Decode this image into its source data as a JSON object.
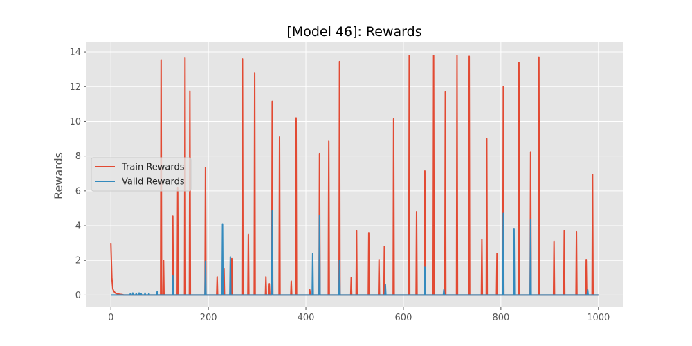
{
  "chart_data": {
    "type": "line",
    "title": "[Model 46]: Rewards",
    "xlabel": "",
    "ylabel": "Rewards",
    "xlim": [
      -50,
      1050
    ],
    "ylim": [
      -0.7,
      14.6
    ],
    "xticks": [
      0,
      200,
      400,
      600,
      800,
      1000
    ],
    "xtick_labels": [
      "0",
      "200",
      "400",
      "600",
      "800",
      "1000"
    ],
    "yticks": [
      0,
      2,
      4,
      6,
      8,
      10,
      12,
      14
    ],
    "ytick_labels": [
      "0",
      "2",
      "4",
      "6",
      "8",
      "10",
      "12",
      "14"
    ],
    "grid": true,
    "legend_position": "center-left",
    "x_range": [
      0,
      1000
    ],
    "series": [
      {
        "name": "Train Rewards",
        "color": "#E24A33",
        "baseline": 0.0,
        "start_values": [
          [
            0,
            3.0
          ],
          [
            2,
            1.0
          ],
          [
            4,
            0.35
          ],
          [
            6,
            0.22
          ],
          [
            8,
            0.15
          ],
          [
            10,
            0.1
          ],
          [
            15,
            0.06
          ],
          [
            25,
            0.02
          ]
        ],
        "spikes": [
          [
            103,
            13.55
          ],
          [
            108,
            2.0
          ],
          [
            127,
            4.55
          ],
          [
            137,
            6.2
          ],
          [
            152,
            13.65
          ],
          [
            162,
            11.75
          ],
          [
            194,
            7.35
          ],
          [
            218,
            1.05
          ],
          [
            232,
            1.5
          ],
          [
            248,
            2.1
          ],
          [
            270,
            13.6
          ],
          [
            282,
            3.5
          ],
          [
            295,
            12.8
          ],
          [
            318,
            1.05
          ],
          [
            325,
            0.65
          ],
          [
            331,
            11.15
          ],
          [
            346,
            9.1
          ],
          [
            370,
            0.8
          ],
          [
            380,
            10.2
          ],
          [
            408,
            0.3
          ],
          [
            428,
            8.15
          ],
          [
            447,
            8.85
          ],
          [
            469,
            13.45
          ],
          [
            493,
            1.0
          ],
          [
            504,
            3.7
          ],
          [
            529,
            3.6
          ],
          [
            550,
            2.05
          ],
          [
            561,
            2.8
          ],
          [
            580,
            10.15
          ],
          [
            612,
            13.8
          ],
          [
            627,
            4.8
          ],
          [
            644,
            7.15
          ],
          [
            662,
            13.8
          ],
          [
            686,
            11.7
          ],
          [
            710,
            13.8
          ],
          [
            735,
            13.75
          ],
          [
            761,
            3.2
          ],
          [
            771,
            9.0
          ],
          [
            792,
            2.4
          ],
          [
            805,
            12.0
          ],
          [
            837,
            13.4
          ],
          [
            861,
            8.25
          ],
          [
            878,
            13.7
          ],
          [
            909,
            3.1
          ],
          [
            930,
            3.7
          ],
          [
            955,
            3.65
          ],
          [
            975,
            2.05
          ],
          [
            988,
            6.95
          ]
        ]
      },
      {
        "name": "Valid Rewards",
        "color": "#348ABD",
        "baseline": 0.0,
        "start_values": [
          [
            0,
            0.0
          ]
        ],
        "spikes": [
          [
            40,
            0.08
          ],
          [
            45,
            0.12
          ],
          [
            52,
            0.1
          ],
          [
            58,
            0.12
          ],
          [
            62,
            0.08
          ],
          [
            70,
            0.12
          ],
          [
            78,
            0.1
          ],
          [
            95,
            0.2
          ],
          [
            127,
            1.1
          ],
          [
            194,
            1.95
          ],
          [
            229,
            4.1
          ],
          [
            245,
            2.2
          ],
          [
            331,
            4.85
          ],
          [
            414,
            2.4
          ],
          [
            428,
            4.6
          ],
          [
            469,
            2.0
          ],
          [
            563,
            0.6
          ],
          [
            644,
            1.6
          ],
          [
            683,
            0.3
          ],
          [
            805,
            4.7
          ],
          [
            827,
            3.8
          ],
          [
            861,
            4.35
          ],
          [
            978,
            0.3
          ]
        ]
      }
    ]
  }
}
